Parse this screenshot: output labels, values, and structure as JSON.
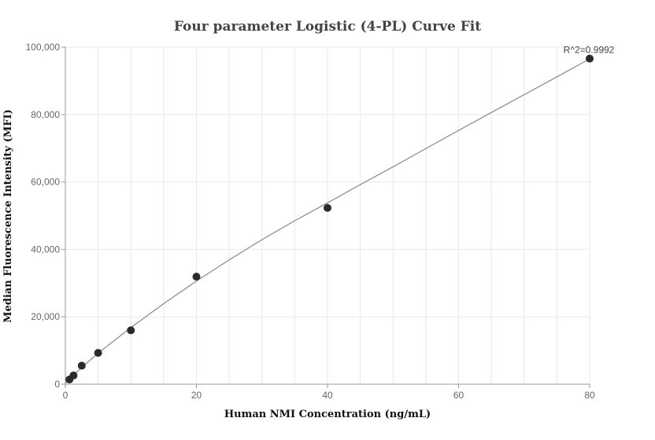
{
  "chart_data": {
    "type": "scatter",
    "title": "Four parameter Logistic (4-PL) Curve Fit",
    "xlabel": "Human NMI Concentration (ng/mL)",
    "ylabel": "Median Fluorescence Intensity (MFI)",
    "xlim": [
      0,
      80
    ],
    "ylim": [
      0,
      100000
    ],
    "x_ticks": [
      0,
      20,
      40,
      60,
      80
    ],
    "x_tick_labels": [
      "0",
      "20",
      "40",
      "60",
      "80"
    ],
    "y_ticks": [
      0,
      20000,
      40000,
      60000,
      80000,
      100000
    ],
    "y_tick_labels": [
      "0",
      "20,000",
      "40,000",
      "60,000",
      "80,000",
      "100,000"
    ],
    "grid": true,
    "annotation": "R^2=0.9992",
    "colors": {
      "points": "#2b2b2b",
      "curve": "#888888",
      "grid": "#e8e8ee"
    },
    "series": [
      {
        "x": [
          0.625,
          1.25,
          2.5,
          5,
          10,
          20,
          40,
          80
        ],
        "y": [
          1400,
          2600,
          5500,
          9300,
          16000,
          31900,
          52300,
          96600
        ]
      }
    ],
    "fit_curve": {
      "x": [
        0,
        0.625,
        1.25,
        2.5,
        5,
        10,
        15,
        20,
        25,
        30,
        35,
        40,
        45,
        50,
        55,
        60,
        65,
        70,
        75,
        80
      ],
      "y": [
        300,
        1500,
        2700,
        5000,
        9200,
        16800,
        23900,
        30600,
        36900,
        42900,
        48500,
        53800,
        59200,
        64500,
        69900,
        75300,
        80600,
        85900,
        91200,
        96500
      ]
    }
  }
}
